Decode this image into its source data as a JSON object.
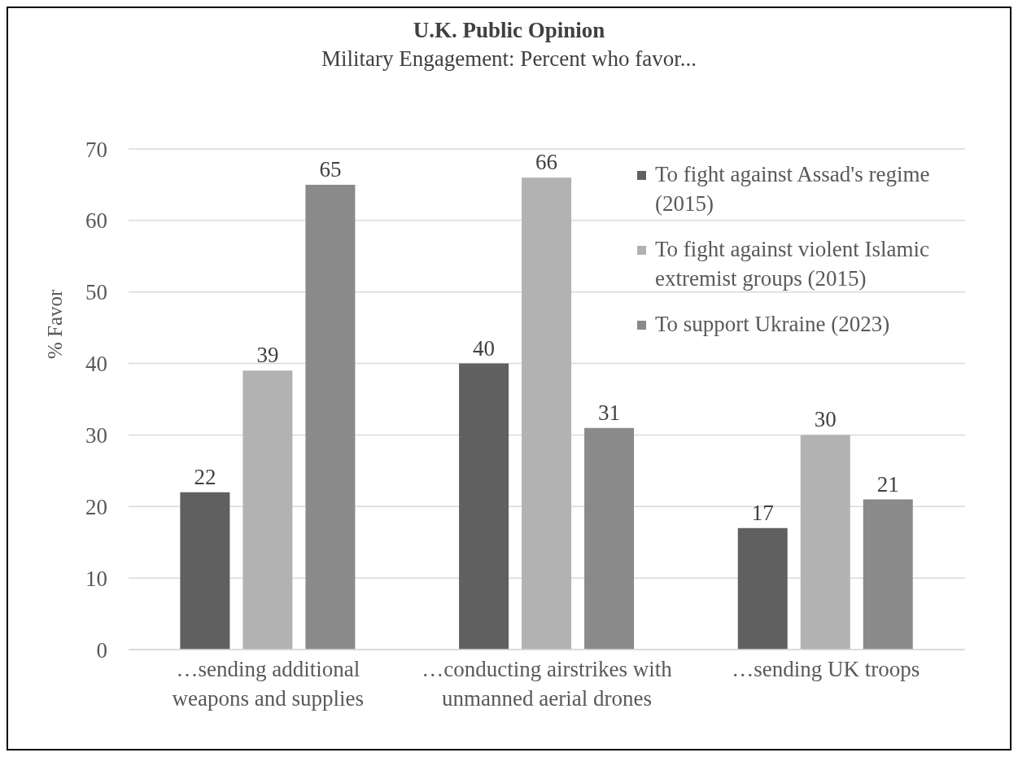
{
  "chart_data": {
    "type": "bar",
    "title": "U.K. Public Opinion",
    "subtitle": "Military Engagement: Percent who favor...",
    "ylabel": "% Favor",
    "categories": [
      "…sending additional weapons and supplies",
      "…conducting airstrikes with unmanned aerial drones",
      "…sending UK troops"
    ],
    "series": [
      {
        "name": "To fight against Assad's regime (2015)",
        "color": "#606060",
        "values": [
          22,
          40,
          17
        ]
      },
      {
        "name": "To fight against violent Islamic extremist groups (2015)",
        "color": "#b2b2b2",
        "values": [
          39,
          66,
          30
        ]
      },
      {
        "name": "To support Ukraine (2023)",
        "color": "#8a8a8a",
        "values": [
          65,
          31,
          21
        ]
      }
    ],
    "ylim": [
      0,
      70
    ],
    "yticks": [
      0,
      10,
      20,
      30,
      40,
      50,
      60,
      70
    ],
    "grid": "y",
    "legend": "top right",
    "data_labels": true
  }
}
